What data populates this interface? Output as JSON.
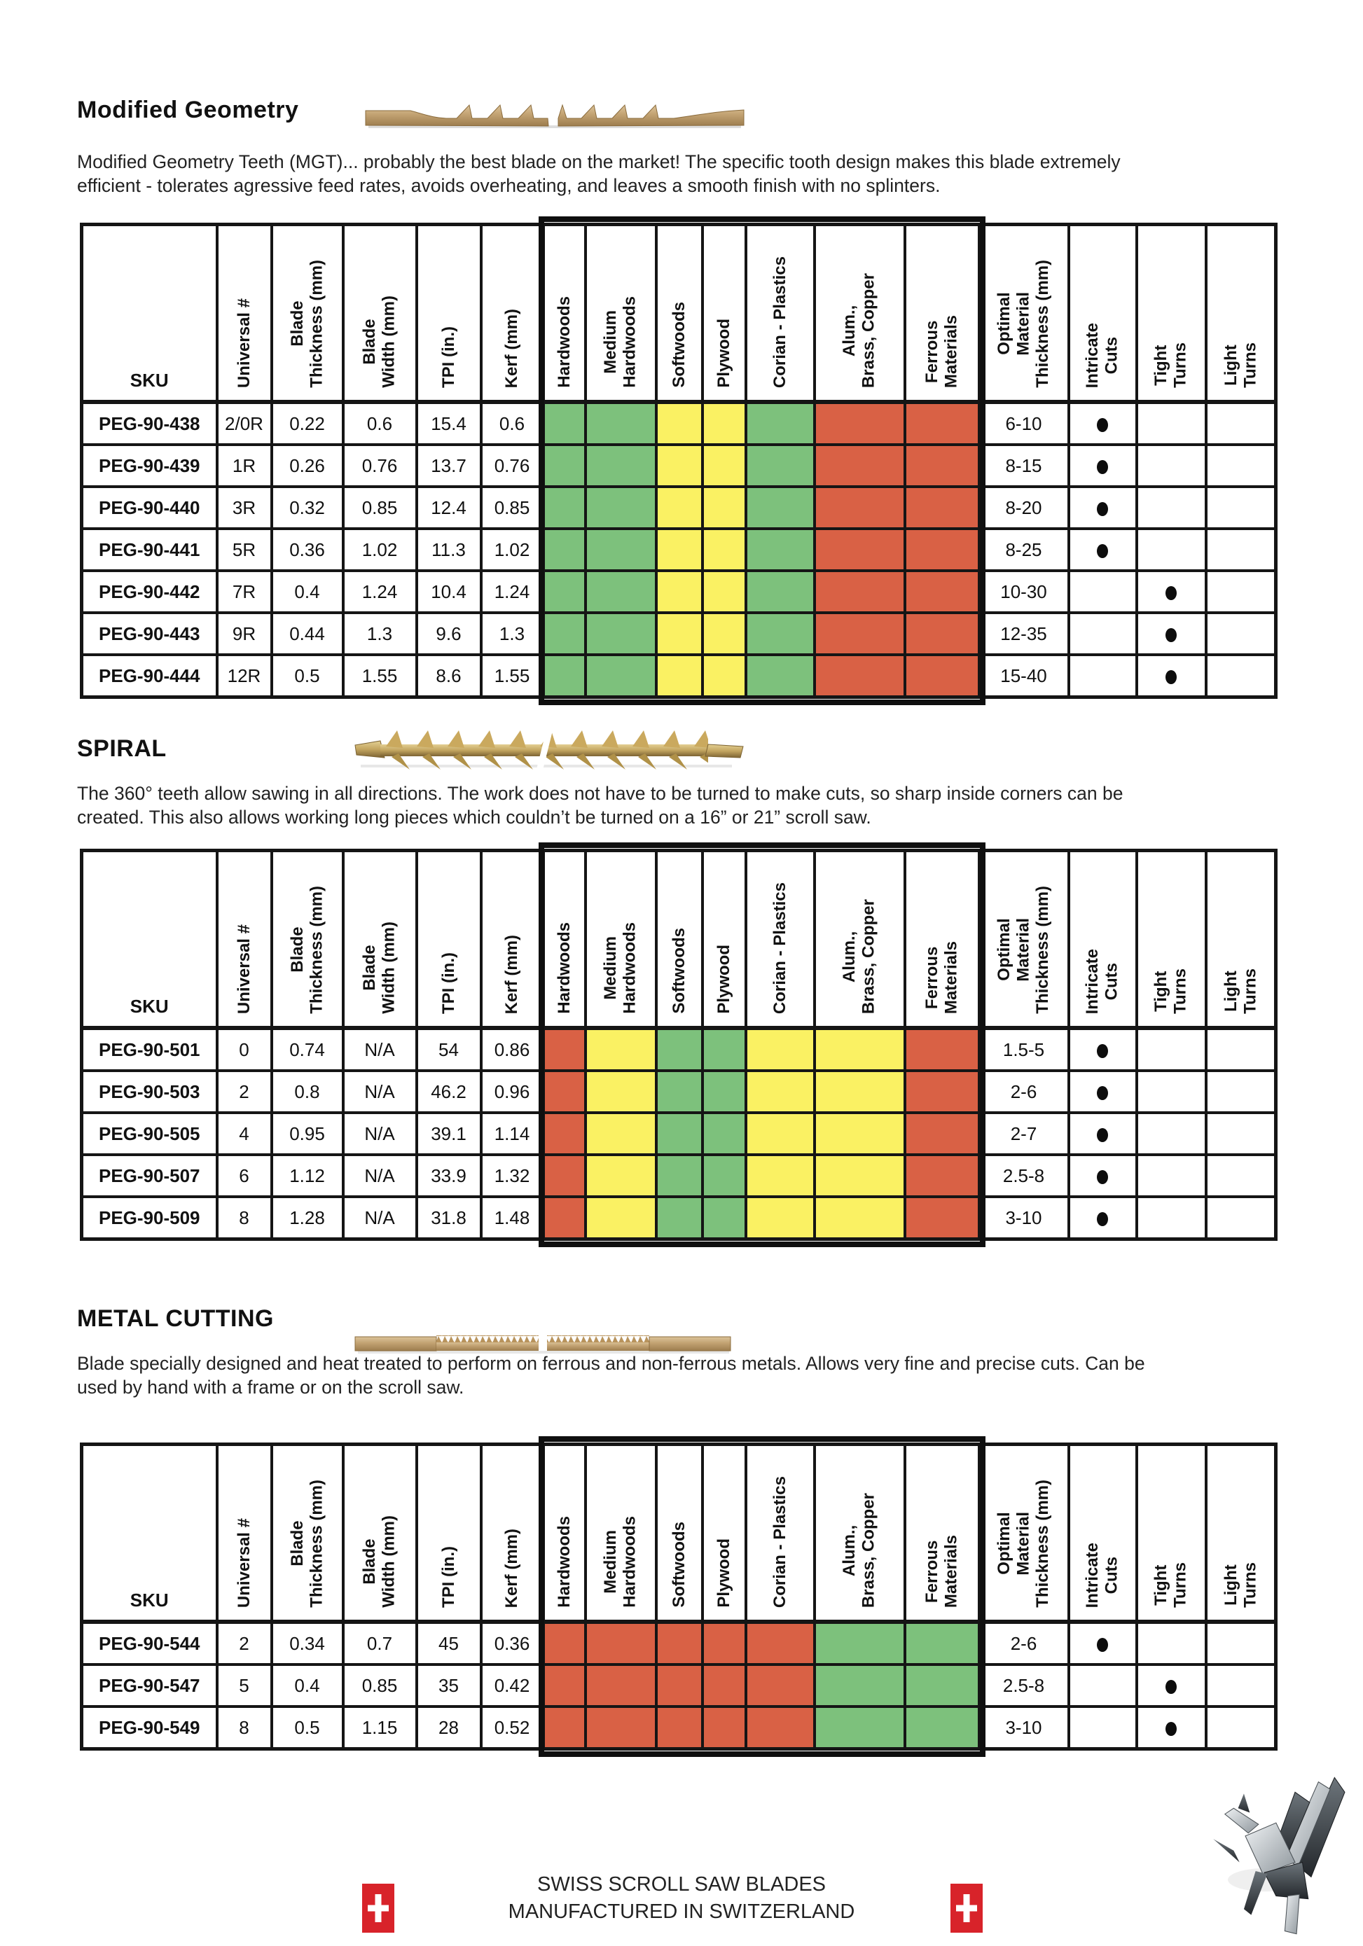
{
  "colors": {
    "green": "#7dc17c",
    "yellow": "#faf163",
    "red": "#d96145",
    "blade_tan": "#c2a272",
    "flag_red": "#d8232a",
    "border_black": "#151515"
  },
  "columns": [
    {
      "key": "sku",
      "label": "SKU"
    },
    {
      "key": "universal",
      "label": "Universal #"
    },
    {
      "key": "thickness",
      "label": "Blade\nThickness (mm)"
    },
    {
      "key": "width",
      "label": "Blade\nWidth (mm)"
    },
    {
      "key": "tpi",
      "label": "TPI (in.)"
    },
    {
      "key": "kerf",
      "label": "Kerf (mm)"
    },
    {
      "key": "hardwoods",
      "label": "Hardwoods",
      "mat": 0
    },
    {
      "key": "medium-hardwoods",
      "label": "Medium\nHardwoods",
      "mat": 1
    },
    {
      "key": "softwoods",
      "label": "Softwoods",
      "mat": 2
    },
    {
      "key": "plywood",
      "label": "Plywood",
      "mat": 3
    },
    {
      "key": "corian-plastics",
      "label": "Corian  - Plastics",
      "mat": 4
    },
    {
      "key": "alum-brass-copper",
      "label": "Alum.,\nBrass, Copper",
      "mat": 5
    },
    {
      "key": "ferrous-materials",
      "label": "Ferrous\nMaterials",
      "mat": 6
    },
    {
      "key": "optimal",
      "label": "Optimal\nMaterial\nThickness (mm)"
    },
    {
      "key": "intricate",
      "label": "Intricate\nCuts",
      "dot": true
    },
    {
      "key": "tight",
      "label": "Tight\nTurns",
      "dot": true
    },
    {
      "key": "light",
      "label": "Light\nTurns",
      "dot": true
    }
  ],
  "sections": [
    {
      "id": "modified-geometry",
      "title": "Modified Geometry",
      "description": "Modified Geometry Teeth (MGT)... probably the best blade on the market! The specific tooth design makes this blade extremely\nefficient - tolerates agressive feed rates, avoids overheating, and leaves a smooth finish with no splinters.",
      "rows": [
        {
          "sku": "PEG-90-438",
          "universal": "2/0R",
          "thickness": "0.22",
          "width": "0.6",
          "tpi": "15.4",
          "kerf": "0.6",
          "materials": [
            "green",
            "green",
            "yellow",
            "yellow",
            "green",
            "red",
            "red"
          ],
          "optimal": "6-10",
          "intricate": true,
          "tight": false,
          "light": false
        },
        {
          "sku": "PEG-90-439",
          "universal": "1R",
          "thickness": "0.26",
          "width": "0.76",
          "tpi": "13.7",
          "kerf": "0.76",
          "materials": [
            "green",
            "green",
            "yellow",
            "yellow",
            "green",
            "red",
            "red"
          ],
          "optimal": "8-15",
          "intricate": true,
          "tight": false,
          "light": false
        },
        {
          "sku": "PEG-90-440",
          "universal": "3R",
          "thickness": "0.32",
          "width": "0.85",
          "tpi": "12.4",
          "kerf": "0.85",
          "materials": [
            "green",
            "green",
            "yellow",
            "yellow",
            "green",
            "red",
            "red"
          ],
          "optimal": "8-20",
          "intricate": true,
          "tight": false,
          "light": false
        },
        {
          "sku": "PEG-90-441",
          "universal": "5R",
          "thickness": "0.36",
          "width": "1.02",
          "tpi": "11.3",
          "kerf": "1.02",
          "materials": [
            "green",
            "green",
            "yellow",
            "yellow",
            "green",
            "red",
            "red"
          ],
          "optimal": "8-25",
          "intricate": true,
          "tight": false,
          "light": false
        },
        {
          "sku": "PEG-90-442",
          "universal": "7R",
          "thickness": "0.4",
          "width": "1.24",
          "tpi": "10.4",
          "kerf": "1.24",
          "materials": [
            "green",
            "green",
            "yellow",
            "yellow",
            "green",
            "red",
            "red"
          ],
          "optimal": "10-30",
          "intricate": false,
          "tight": true,
          "light": false
        },
        {
          "sku": "PEG-90-443",
          "universal": "9R",
          "thickness": "0.44",
          "width": "1.3",
          "tpi": "9.6",
          "kerf": "1.3",
          "materials": [
            "green",
            "green",
            "yellow",
            "yellow",
            "green",
            "red",
            "red"
          ],
          "optimal": "12-35",
          "intricate": false,
          "tight": true,
          "light": false
        },
        {
          "sku": "PEG-90-444",
          "universal": "12R",
          "thickness": "0.5",
          "width": "1.55",
          "tpi": "8.6",
          "kerf": "1.55",
          "materials": [
            "green",
            "green",
            "yellow",
            "yellow",
            "green",
            "red",
            "red"
          ],
          "optimal": "15-40",
          "intricate": false,
          "tight": true,
          "light": false
        }
      ]
    },
    {
      "id": "spiral",
      "title": "SPIRAL",
      "description": "The 360° teeth allow sawing in all directions. The work does not have to be turned to make cuts, so sharp inside corners can be\ncreated. This also allows working long pieces which couldn’t be turned on a 16” or 21” scroll saw.",
      "rows": [
        {
          "sku": "PEG-90-501",
          "universal": "0",
          "thickness": "0.74",
          "width": "N/A",
          "tpi": "54",
          "kerf": "0.86",
          "materials": [
            "red",
            "yellow",
            "green",
            "green",
            "yellow",
            "yellow",
            "red"
          ],
          "optimal": "1.5-5",
          "intricate": true,
          "tight": false,
          "light": false
        },
        {
          "sku": "PEG-90-503",
          "universal": "2",
          "thickness": "0.8",
          "width": "N/A",
          "tpi": "46.2",
          "kerf": "0.96",
          "materials": [
            "red",
            "yellow",
            "green",
            "green",
            "yellow",
            "yellow",
            "red"
          ],
          "optimal": "2-6",
          "intricate": true,
          "tight": false,
          "light": false
        },
        {
          "sku": "PEG-90-505",
          "universal": "4",
          "thickness": "0.95",
          "width": "N/A",
          "tpi": "39.1",
          "kerf": "1.14",
          "materials": [
            "red",
            "yellow",
            "green",
            "green",
            "yellow",
            "yellow",
            "red"
          ],
          "optimal": "2-7",
          "intricate": true,
          "tight": false,
          "light": false
        },
        {
          "sku": "PEG-90-507",
          "universal": "6",
          "thickness": "1.12",
          "width": "N/A",
          "tpi": "33.9",
          "kerf": "1.32",
          "materials": [
            "red",
            "yellow",
            "green",
            "green",
            "yellow",
            "yellow",
            "red"
          ],
          "optimal": "2.5-8",
          "intricate": true,
          "tight": false,
          "light": false
        },
        {
          "sku": "PEG-90-509",
          "universal": "8",
          "thickness": "1.28",
          "width": "N/A",
          "tpi": "31.8",
          "kerf": "1.48",
          "materials": [
            "red",
            "yellow",
            "green",
            "green",
            "yellow",
            "yellow",
            "red"
          ],
          "optimal": "3-10",
          "intricate": true,
          "tight": false,
          "light": false
        }
      ]
    },
    {
      "id": "metal-cutting",
      "title": "METAL CUTTING",
      "description": "Blade specially designed and heat treated to perform on ferrous and non-ferrous metals. Allows very fine and precise cuts. Can be\nused by hand with a frame or on the scroll saw.",
      "rows": [
        {
          "sku": "PEG-90-544",
          "universal": "2",
          "thickness": "0.34",
          "width": "0.7",
          "tpi": "45",
          "kerf": "0.36",
          "materials": [
            "red",
            "red",
            "red",
            "red",
            "red",
            "green",
            "green"
          ],
          "optimal": "2-6",
          "intricate": true,
          "tight": false,
          "light": false
        },
        {
          "sku": "PEG-90-547",
          "universal": "5",
          "thickness": "0.4",
          "width": "0.85",
          "tpi": "35",
          "kerf": "0.42",
          "materials": [
            "red",
            "red",
            "red",
            "red",
            "red",
            "green",
            "green"
          ],
          "optimal": "2.5-8",
          "intricate": false,
          "tight": true,
          "light": false
        },
        {
          "sku": "PEG-90-549",
          "universal": "8",
          "thickness": "0.5",
          "width": "1.15",
          "tpi": "28",
          "kerf": "0.52",
          "materials": [
            "red",
            "red",
            "red",
            "red",
            "red",
            "green",
            "green"
          ],
          "optimal": "3-10",
          "intricate": false,
          "tight": true,
          "light": false
        }
      ]
    }
  ],
  "footer": {
    "line1": "SWISS SCROLL SAW BLADES",
    "line2": "MANUFACTURED IN SWITZERLAND"
  }
}
